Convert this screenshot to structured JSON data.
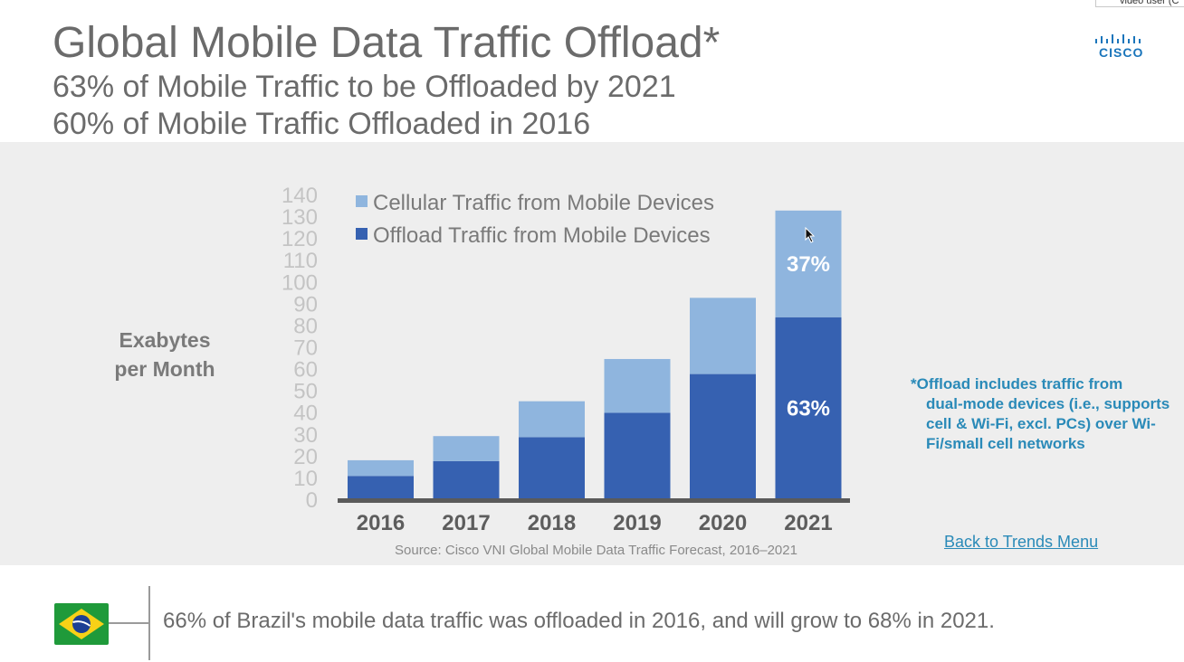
{
  "slide": {
    "title": "Global Mobile Data Traffic Offload*",
    "subtitle_line1": "63% of Mobile Traffic to be Offloaded by 2021",
    "subtitle_line2": "60% of Mobile Traffic Offloaded in 2016",
    "logo_text": "CISCO",
    "video_tag": "video user (C",
    "footnote_line1": "*Offload includes traffic from",
    "footnote_rest": "dual-mode devices (i.e., supports cell & Wi-Fi, excl. PCs) over Wi-Fi/small cell networks",
    "source": "Source: Cisco VNI Global Mobile Data Traffic Forecast, 2016–2021",
    "back_link": "Back to Trends Menu",
    "bottom_text": "66% of Brazil's mobile data traffic was offloaded in 2016, and will grow to 68% in 2021."
  },
  "colors": {
    "cellular": "#8fb5de",
    "offload": "#3661b1",
    "axis": "#5a5a5a",
    "tick_text": "#c4c4c4",
    "year_text": "#5d5d5d",
    "accent": "#2a8ab8"
  },
  "chart_data": {
    "type": "bar",
    "stacked": true,
    "categories": [
      "2016",
      "2017",
      "2018",
      "2019",
      "2020",
      "2021"
    ],
    "series": [
      {
        "name": "Offload Traffic from Mobile Devices",
        "values": [
          10.7,
          17.5,
          28.5,
          39.7,
          57.5,
          83.6
        ]
      },
      {
        "name": "Cellular Traffic from Mobile Devices",
        "values": [
          7.2,
          11.5,
          16.5,
          24.7,
          35,
          49
        ]
      }
    ],
    "legend": [
      "Cellular Traffic from Mobile Devices",
      "Offload Traffic from Mobile Devices"
    ],
    "legend_position": "top-left",
    "ylabel": "Exabytes per Month",
    "ylabel_line1": "Exabytes",
    "ylabel_line2": "per Month",
    "ylim": [
      0,
      140
    ],
    "yticks": [
      0,
      10,
      20,
      30,
      40,
      50,
      60,
      70,
      80,
      90,
      100,
      110,
      120,
      130,
      140
    ],
    "grid": false,
    "annotations": [
      {
        "category": "2021",
        "series": "Cellular Traffic from Mobile Devices",
        "text": "37%"
      },
      {
        "category": "2021",
        "series": "Offload Traffic from Mobile Devices",
        "text": "63%"
      }
    ]
  }
}
